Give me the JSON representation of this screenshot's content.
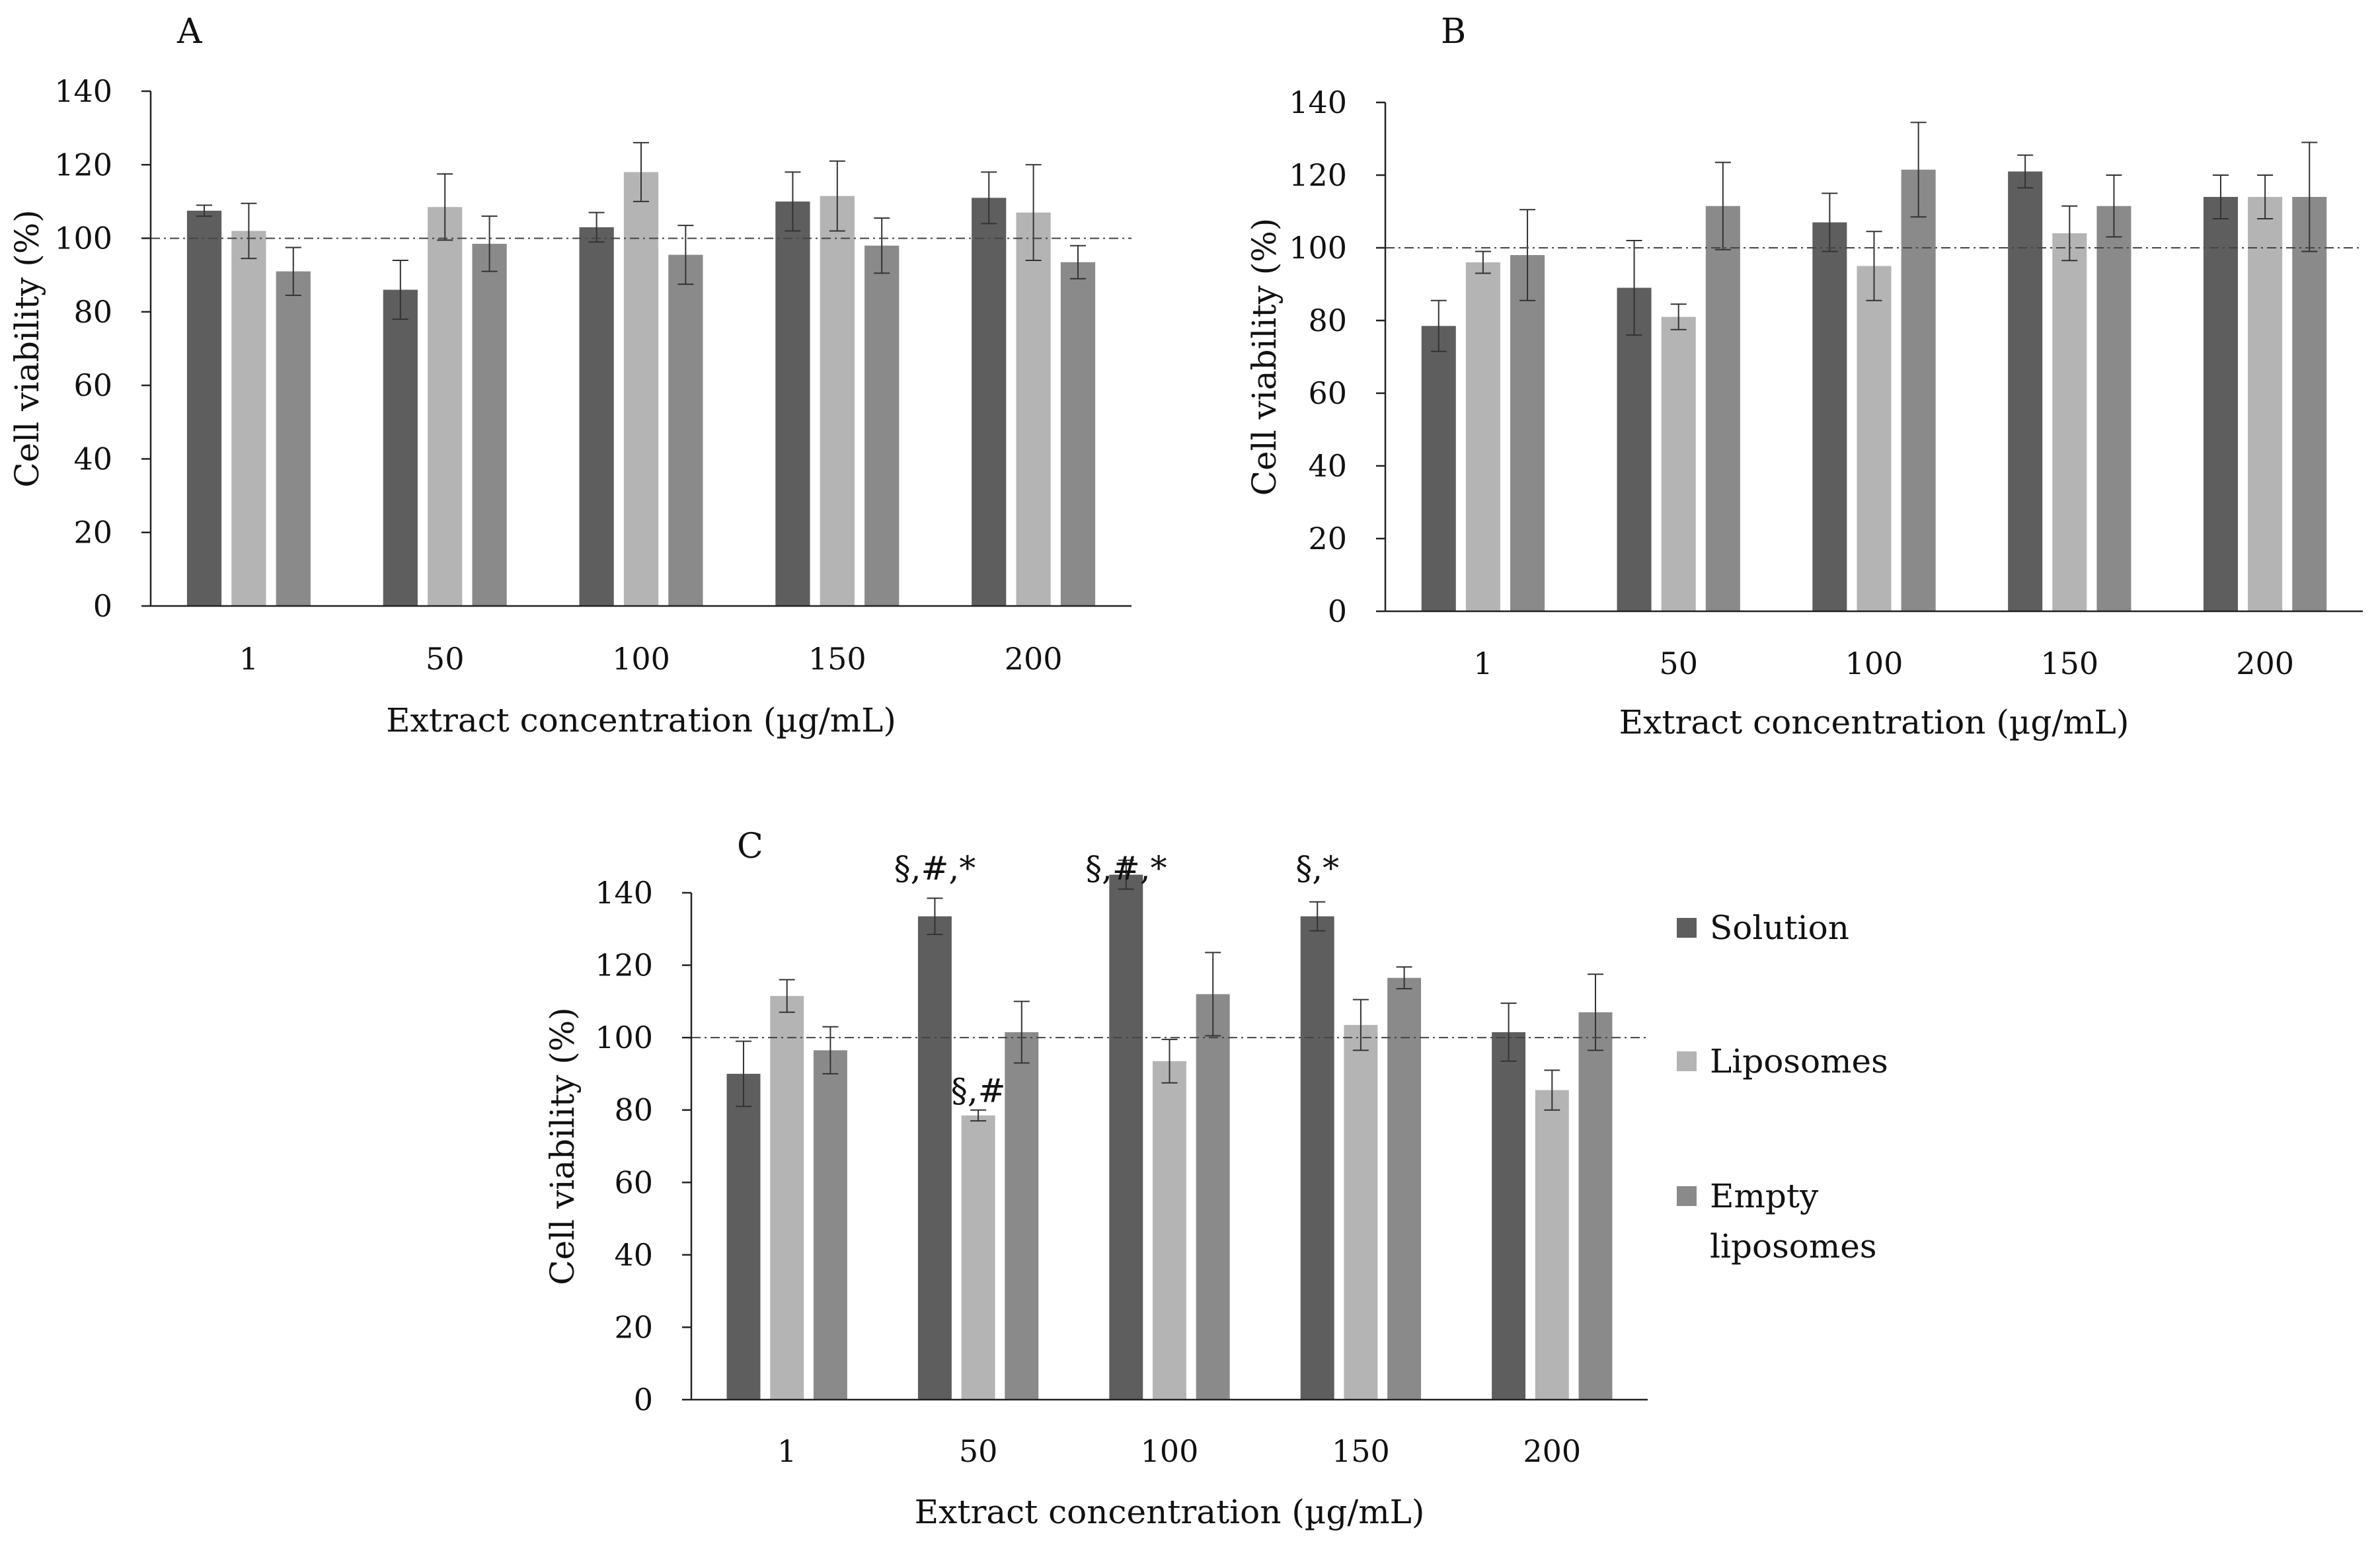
{
  "chart_data": [
    {
      "panel": "A",
      "type": "bar",
      "xlabel": "Extract concentration (µg/mL)",
      "ylabel": "Cell viability (%)",
      "ylim": [
        0,
        140
      ],
      "yticks": [
        0,
        20,
        40,
        60,
        80,
        100,
        120,
        140
      ],
      "grid": false,
      "reference_line": 100,
      "categories": [
        "1",
        "50",
        "100",
        "150",
        "200"
      ],
      "series": [
        {
          "name": "Solution",
          "values": [
            107.5,
            86,
            103,
            110,
            111
          ],
          "errors": [
            1.5,
            8,
            4,
            8,
            7
          ]
        },
        {
          "name": "Liposomes",
          "values": [
            102,
            108.5,
            118,
            111.5,
            107
          ],
          "errors": [
            7.5,
            9,
            8,
            9.5,
            13
          ]
        },
        {
          "name": "Empty liposomes",
          "values": [
            91,
            98.5,
            95.5,
            98,
            93.5
          ],
          "errors": [
            6.5,
            7.5,
            8,
            7.5,
            4.5
          ]
        }
      ],
      "annotations": []
    },
    {
      "panel": "B",
      "type": "bar",
      "xlabel": "Extract concentration (µg/mL)",
      "ylabel": "Cell viability (%)",
      "ylim": [
        0,
        140
      ],
      "yticks": [
        0,
        20,
        40,
        60,
        80,
        100,
        120,
        140
      ],
      "grid": false,
      "reference_line": 100,
      "categories": [
        "1",
        "50",
        "100",
        "150",
        "200"
      ],
      "series": [
        {
          "name": "Solution",
          "values": [
            78.5,
            89,
            107,
            121,
            114
          ],
          "errors": [
            7,
            13,
            8,
            4.5,
            6
          ]
        },
        {
          "name": "Liposomes",
          "values": [
            96,
            81,
            95,
            104,
            114
          ],
          "errors": [
            3,
            3.5,
            9.5,
            7.5,
            6
          ]
        },
        {
          "name": "Empty liposomes",
          "values": [
            98,
            111.5,
            121.5,
            111.5,
            114
          ],
          "errors": [
            12.5,
            12,
            13,
            8.5,
            15
          ]
        }
      ],
      "annotations": []
    },
    {
      "panel": "C",
      "type": "bar",
      "xlabel": "Extract concentration (µg/mL)",
      "ylabel": "Cell viability (%)",
      "ylim": [
        0,
        140
      ],
      "yticks": [
        0,
        20,
        40,
        60,
        80,
        100,
        120,
        140
      ],
      "grid": false,
      "reference_line": 100,
      "categories": [
        "1",
        "50",
        "100",
        "150",
        "200"
      ],
      "series": [
        {
          "name": "Solution",
          "values": [
            90,
            133.5,
            145,
            133.5,
            101.5
          ],
          "errors": [
            9,
            5,
            4,
            4,
            8
          ]
        },
        {
          "name": "Liposomes",
          "values": [
            111.5,
            78.5,
            93.5,
            103.5,
            85.5
          ],
          "errors": [
            4.5,
            1.5,
            6,
            7,
            5.5
          ]
        },
        {
          "name": "Empty liposomes",
          "values": [
            96.5,
            101.5,
            112,
            116.5,
            107
          ],
          "errors": [
            6.5,
            8.5,
            11.5,
            3,
            10.5
          ]
        }
      ],
      "annotations": [
        {
          "category": "50",
          "series": "Solution",
          "text": "§,#,*"
        },
        {
          "category": "100",
          "series": "Solution",
          "text": "§,#,*"
        },
        {
          "category": "150",
          "series": "Solution",
          "text": "§,*"
        },
        {
          "category": "50",
          "series": "Liposomes",
          "text": "§,#"
        }
      ],
      "legend": {
        "placement": "right",
        "entries": [
          "Solution",
          "Liposomes",
          "Empty liposomes"
        ]
      }
    }
  ],
  "colors": {
    "Solution": "#5e5e5e",
    "Liposomes": "#b4b4b4",
    "Empty liposomes": "#8a8a8a",
    "axis": "#222222",
    "reference_line": "#444444"
  }
}
